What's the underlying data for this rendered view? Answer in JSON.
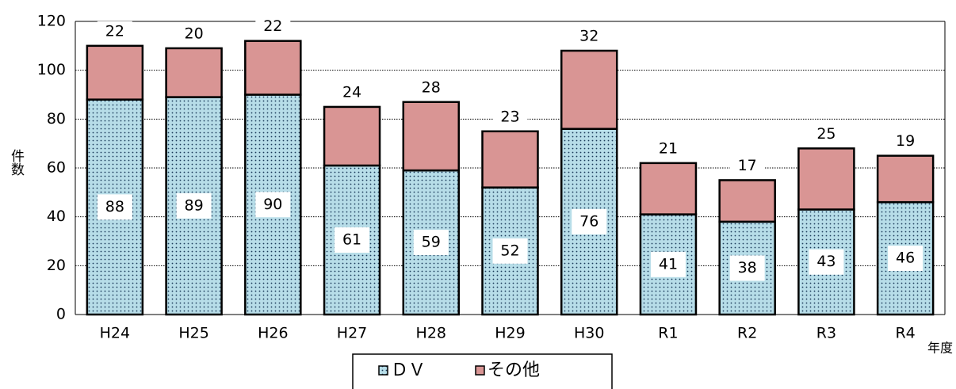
{
  "chart_data": {
    "type": "stacked_bar",
    "categories": [
      "H24",
      "H25",
      "H26",
      "H27",
      "H28",
      "H29",
      "H30",
      "R1",
      "R2",
      "R3",
      "R4"
    ],
    "series": [
      {
        "name": "ＤＶ",
        "color": "#b7dde8",
        "values": [
          88,
          89,
          90,
          61,
          59,
          52,
          76,
          41,
          38,
          43,
          46
        ]
      },
      {
        "name": "その他",
        "color": "#d99594",
        "values": [
          22,
          20,
          22,
          24,
          28,
          23,
          32,
          21,
          17,
          25,
          19
        ]
      }
    ],
    "ylim": [
      0,
      120
    ],
    "yticks": [
      0,
      20,
      40,
      60,
      80,
      100,
      120
    ],
    "grid": true,
    "y_label": "件数",
    "x_label": "年度"
  }
}
